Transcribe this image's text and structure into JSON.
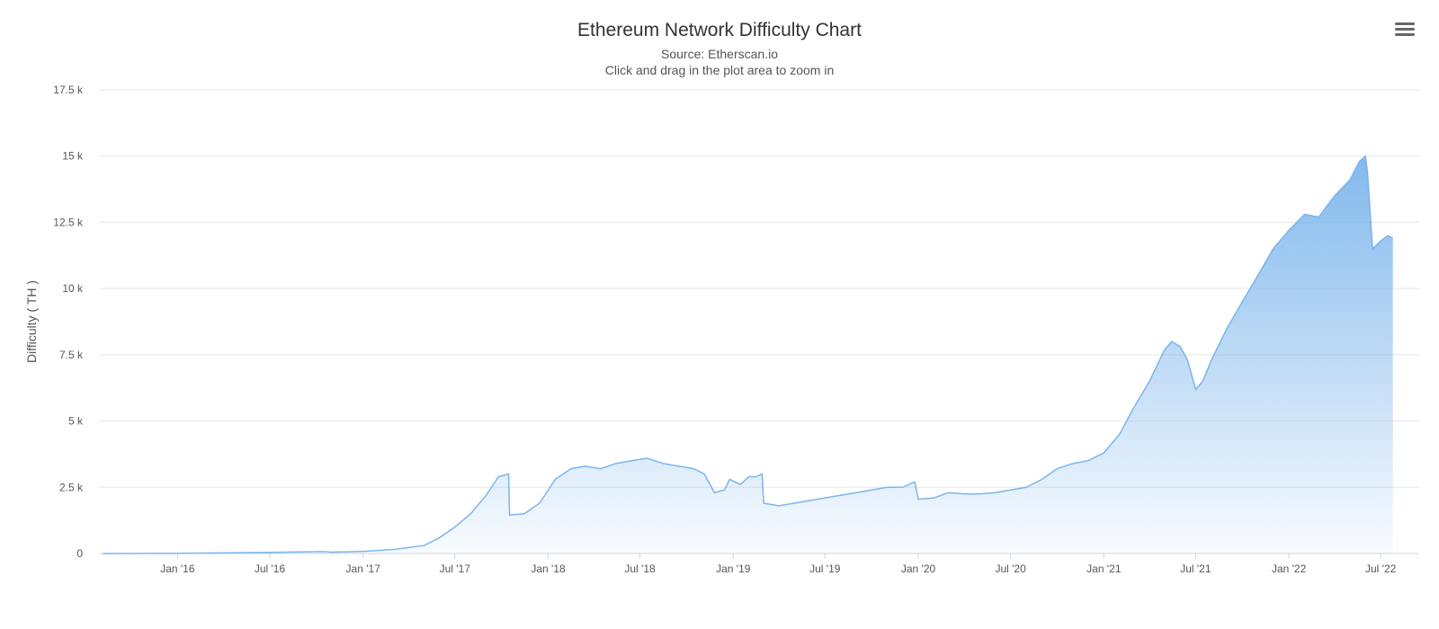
{
  "colors": {
    "area_top": "#7cb5ec",
    "line": "#7cb5ec",
    "grid": "#e6e6e6",
    "text": "#333333"
  },
  "menu": {
    "icon": "hamburger-menu-icon"
  },
  "chart_data": {
    "type": "area",
    "title": "Ethereum Network Difficulty Chart",
    "subtitle": "Source: Etherscan.io",
    "subtitle2": "Click and drag in the plot area to zoom in",
    "ylabel": "Difficulty ( TH )",
    "xlabel": "",
    "ylim": [
      0,
      17500
    ],
    "xlim": [
      "2015-07-30",
      "2022-09-15"
    ],
    "grid": true,
    "legend": "none",
    "y_ticks": [
      {
        "value": 0,
        "label": "0"
      },
      {
        "value": 2500,
        "label": "2.5 k"
      },
      {
        "value": 5000,
        "label": "5 k"
      },
      {
        "value": 7500,
        "label": "7.5 k"
      },
      {
        "value": 10000,
        "label": "10 k"
      },
      {
        "value": 12500,
        "label": "12.5 k"
      },
      {
        "value": 15000,
        "label": "15 k"
      },
      {
        "value": 17500,
        "label": "17.5 k"
      }
    ],
    "x_ticks": [
      {
        "date": "2016-01-01",
        "label": "Jan '16"
      },
      {
        "date": "2016-07-01",
        "label": "Jul '16"
      },
      {
        "date": "2017-01-01",
        "label": "Jan '17"
      },
      {
        "date": "2017-07-01",
        "label": "Jul '17"
      },
      {
        "date": "2018-01-01",
        "label": "Jan '18"
      },
      {
        "date": "2018-07-01",
        "label": "Jul '18"
      },
      {
        "date": "2019-01-01",
        "label": "Jan '19"
      },
      {
        "date": "2019-07-01",
        "label": "Jul '19"
      },
      {
        "date": "2020-01-01",
        "label": "Jan '20"
      },
      {
        "date": "2020-07-01",
        "label": "Jul '20"
      },
      {
        "date": "2021-01-01",
        "label": "Jan '21"
      },
      {
        "date": "2021-07-01",
        "label": "Jul '21"
      },
      {
        "date": "2022-01-01",
        "label": "Jan '22"
      },
      {
        "date": "2022-07-01",
        "label": "Jul '22"
      }
    ],
    "series": [
      {
        "x": [
          "2015-08-07",
          "2016-01-01",
          "2016-07-01",
          "2016-10-15",
          "2016-11-01",
          "2017-01-01",
          "2017-03-01",
          "2017-05-01",
          "2017-06-01",
          "2017-07-01",
          "2017-08-01",
          "2017-09-01",
          "2017-09-25",
          "2017-10-15",
          "2017-10-17",
          "2017-11-15",
          "2017-12-15",
          "2018-01-15",
          "2018-02-15",
          "2018-03-15",
          "2018-04-15",
          "2018-05-15",
          "2018-06-15",
          "2018-07-15",
          "2018-08-15",
          "2018-09-15",
          "2018-10-15",
          "2018-11-05",
          "2018-11-25",
          "2018-12-15",
          "2018-12-25",
          "2019-01-15",
          "2019-02-01",
          "2019-02-15",
          "2019-02-27",
          "2019-03-02",
          "2019-04-01",
          "2019-05-01",
          "2019-06-01",
          "2019-07-01",
          "2019-08-01",
          "2019-09-01",
          "2019-10-01",
          "2019-11-01",
          "2019-12-01",
          "2019-12-25",
          "2020-01-01",
          "2020-02-01",
          "2020-03-01",
          "2020-04-01",
          "2020-05-01",
          "2020-06-01",
          "2020-07-01",
          "2020-08-01",
          "2020-09-01",
          "2020-10-01",
          "2020-11-01",
          "2020-12-01",
          "2021-01-01",
          "2021-02-01",
          "2021-03-01",
          "2021-04-01",
          "2021-05-01",
          "2021-05-15",
          "2021-06-01",
          "2021-06-15",
          "2021-07-01",
          "2021-07-15",
          "2021-08-01",
          "2021-09-01",
          "2021-10-01",
          "2021-11-01",
          "2021-12-01",
          "2022-01-01",
          "2022-02-01",
          "2022-03-01",
          "2022-04-01",
          "2022-05-01",
          "2022-05-20",
          "2022-06-01",
          "2022-06-05",
          "2022-06-15",
          "2022-07-01",
          "2022-07-15",
          "2022-07-25"
        ],
        "y": [
          0,
          10,
          40,
          70,
          50,
          80,
          150,
          300,
          600,
          1000,
          1500,
          2200,
          2900,
          3000,
          1450,
          1500,
          1900,
          2800,
          3200,
          3300,
          3200,
          3400,
          3500,
          3600,
          3400,
          3300,
          3200,
          3000,
          2300,
          2400,
          2800,
          2600,
          2900,
          2900,
          3000,
          1900,
          1800,
          1900,
          2000,
          2100,
          2200,
          2300,
          2400,
          2500,
          2500,
          2700,
          2050,
          2100,
          2300,
          2250,
          2250,
          2300,
          2400,
          2500,
          2800,
          3200,
          3400,
          3500,
          3800,
          4500,
          5500,
          6500,
          7700,
          8000,
          7800,
          7300,
          6200,
          6500,
          7300,
          8500,
          9500,
          10500,
          11500,
          12200,
          12800,
          12700,
          13500,
          14100,
          14800,
          15000,
          14400,
          11500,
          11800,
          12000,
          11900
        ]
      }
    ]
  }
}
